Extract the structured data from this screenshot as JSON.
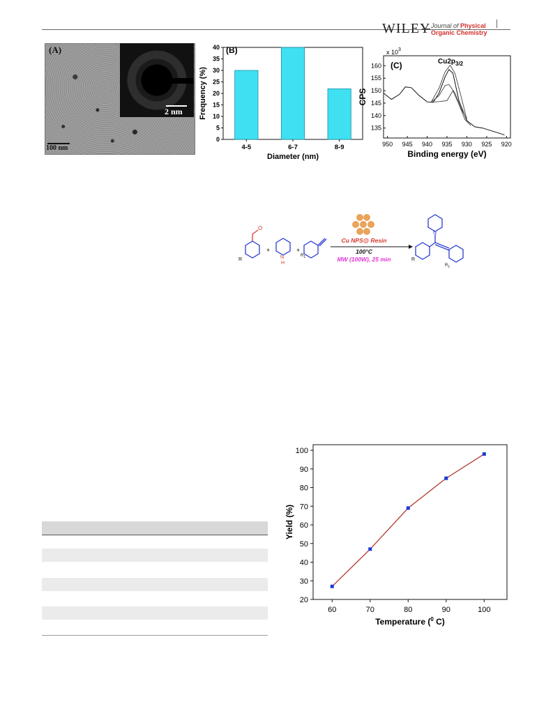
{
  "header": {
    "publisher": "WILEY",
    "journal_line1_prefix": "Journal of",
    "journal_line1_strong": "Physical",
    "journal_line2": "Organic Chemistry"
  },
  "figure1": {
    "panel_a": {
      "label": "(A)",
      "inset_scale": "2 nm",
      "scale": "100 nm"
    },
    "panel_b": {
      "label": "(B)",
      "chart_data": {
        "type": "bar",
        "categories": [
          "4-5",
          "6-7",
          "8-9"
        ],
        "values": [
          30,
          40,
          22
        ],
        "xlabel": "Diameter (nm)",
        "ylabel": "Frequency (%)",
        "ylim": [
          0,
          40
        ],
        "yticks": [
          "0",
          "5",
          "10",
          "15",
          "20",
          "25",
          "30",
          "35",
          "40"
        ],
        "color": "#3fe0f2",
        "grid": false
      }
    },
    "panel_c": {
      "label": "(C)",
      "peak_label": "Cu2p",
      "peak_sub": "3/2",
      "exponent_label": "x 10",
      "exponent": "3",
      "chart_data": {
        "type": "line",
        "xlabel": "Binding energy (eV)",
        "ylabel": "CPS",
        "xticks": [
          "950",
          "945",
          "940",
          "935",
          "930",
          "925",
          "920"
        ],
        "yticks": [
          "135",
          "140",
          "145",
          "150",
          "155",
          "160"
        ],
        "xlim": [
          951,
          919
        ],
        "ylim": [
          131,
          164
        ],
        "series": [
          {
            "x": [
              951,
              949,
              947,
              945.5,
              944,
              942,
              940,
              938.5,
              937,
              935.5,
              934.5,
              933.5,
              932,
              930,
              928,
              926,
              924,
              922,
              920.5
            ],
            "y": [
              149,
              146.5,
              148.5,
              151.5,
              151.2,
              148,
              145.5,
              145.3,
              149,
              155.5,
              158.5,
              157,
              146,
              138,
              135.5,
              135,
              134,
              133,
              132.2
            ]
          },
          {
            "x": [
              939,
              937,
              935.5,
              934.2,
              933,
              931.5,
              930
            ],
            "y": [
              145.4,
              151,
              157.5,
              160.2,
              157,
              148,
              138.5
            ]
          },
          {
            "x": [
              939,
              937,
              935.5,
              934.5,
              933,
              931.5,
              930
            ],
            "y": [
              145.4,
              148,
              152,
              152.5,
              149,
              143,
              138.5
            ]
          },
          {
            "x": [
              939,
              937,
              935,
              933.5,
              932,
              930.5,
              929
            ],
            "y": [
              145.4,
              145.6,
              146,
              150,
              144.5,
              138.5,
              136
            ]
          }
        ]
      }
    }
  },
  "scheme": {
    "catalyst": "Cu NPS@ Resin",
    "temperature": "100°C",
    "conditions": "MW (100W), 25 min",
    "sub_r": "R",
    "sub_r1": "R",
    "sub_r1_index": "1",
    "plus": "+",
    "nh": "H",
    "n": "N"
  },
  "figure2": {
    "chart_data": {
      "type": "line",
      "x": [
        60,
        70,
        80,
        90,
        100
      ],
      "values": [
        27,
        47,
        69,
        85,
        98
      ],
      "xlabel": "Temperature (",
      "xlabel_sup": "0",
      "xlabel_end": " C)",
      "ylabel": "Yield (%)",
      "xlim": [
        55,
        106
      ],
      "ylim": [
        20,
        103
      ],
      "xticks": [
        "60",
        "70",
        "80",
        "90",
        "100"
      ],
      "yticks": [
        "20",
        "30",
        "40",
        "50",
        "60",
        "70",
        "80",
        "90",
        "100"
      ],
      "line_color": "#b03a2e",
      "marker_color": "#1a3ad6"
    }
  }
}
